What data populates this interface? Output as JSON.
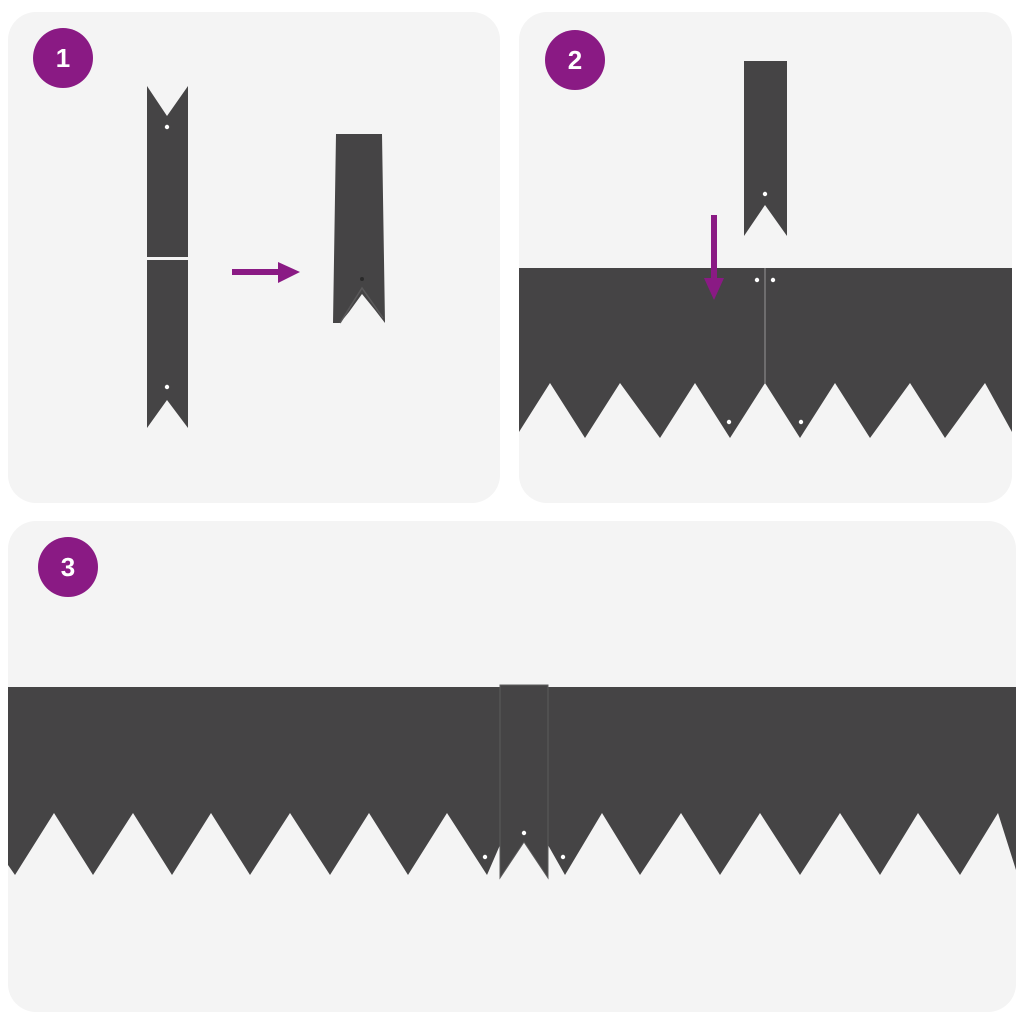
{
  "steps": [
    {
      "number": "1"
    },
    {
      "number": "2"
    },
    {
      "number": "3"
    }
  ],
  "colors": {
    "panel_background": "#f4f4f4",
    "edging_metal": "#454445",
    "accent_badge_and_arrows": "#8a1a84"
  },
  "icons": {
    "step1_arrow": "arrow-right-icon",
    "step2_arrow": "arrow-down-icon"
  }
}
